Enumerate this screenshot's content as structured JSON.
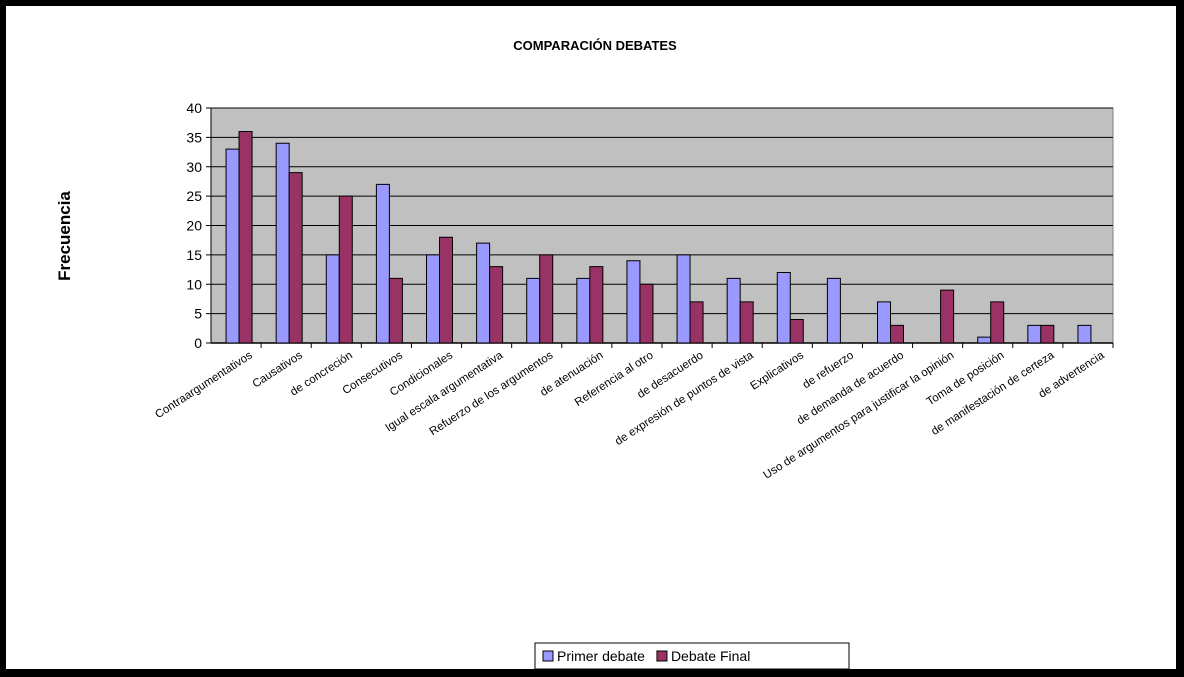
{
  "chart_data": {
    "type": "bar",
    "title": "COMPARACIÓN DEBATES",
    "xlabel": "",
    "ylabel": "Frecuencia",
    "ylim": [
      0,
      40
    ],
    "yticks": [
      0,
      5,
      10,
      15,
      20,
      25,
      30,
      35,
      40
    ],
    "grid": true,
    "legend_position": "bottom",
    "categories": [
      "Contraargumentativos",
      "Causativos",
      "de concreción",
      "Consecutivos",
      "Condicionales",
      "Igual escala argumentativa",
      "Refuerzo de los argumentos",
      "de atenuación",
      "Referencia al otro",
      "de desacuerdo",
      "de expresión de puntos de vista",
      "Explicativos",
      "de refuerzo",
      "de demanda de acuerdo",
      "Uso de argumentos para justificar la opinión",
      "Toma de posición",
      "de manifestación de certeza",
      "de advertencia"
    ],
    "series": [
      {
        "name": "Primer debate",
        "color": "#9999ff",
        "values": [
          33,
          34,
          15,
          27,
          15,
          17,
          11,
          11,
          14,
          15,
          11,
          12,
          11,
          7,
          0,
          1,
          3,
          3
        ]
      },
      {
        "name": "Debate Final",
        "color": "#993366",
        "values": [
          36,
          29,
          25,
          11,
          18,
          13,
          15,
          13,
          10,
          7,
          7,
          4,
          0,
          3,
          9,
          7,
          3,
          0
        ]
      }
    ],
    "plot_background": "#c0c0c0"
  }
}
